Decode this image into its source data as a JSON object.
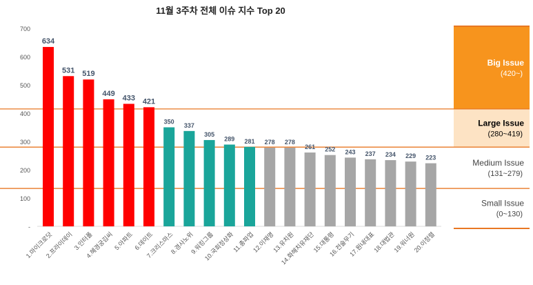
{
  "chart_data": {
    "type": "bar",
    "title": "11월 3주차 전체 이슈 지수 Top 20",
    "xlabel": "",
    "ylabel": "",
    "ylim": [
      0,
      700
    ],
    "yticks": [
      "-",
      "100",
      "200",
      "300",
      "400",
      "500",
      "600",
      "700"
    ],
    "grid": false,
    "categories": [
      "1.마이크로닷",
      "2.프라이데이",
      "3.인터폴",
      "4.혜경궁김씨",
      "5.아파트",
      "6.데이트",
      "7.크리스마스",
      "8.경사노위",
      "9.워킹그룹",
      "10.국회정상화",
      "11.총파업",
      "12.이재명",
      "13.유치원",
      "14.화해치유재단",
      "15.대통령",
      "16.전술무기",
      "17.원내대표",
      "18.대법관",
      "19.워너원",
      "20.이정렬"
    ],
    "values": [
      634,
      531,
      519,
      449,
      433,
      421,
      350,
      337,
      305,
      289,
      281,
      278,
      278,
      261,
      252,
      243,
      237,
      234,
      229,
      223
    ],
    "thresholds": [
      415,
      280,
      134
    ],
    "bands": [
      {
        "name": "Big Issue",
        "range": "(420~)",
        "color": "#f7941d",
        "text_color": "#ffffff"
      },
      {
        "name": "Large Issue",
        "range": "(280~419)",
        "color": "#fde3c4",
        "text_color": "#000000"
      },
      {
        "name": "Medium Issue",
        "range": "(131~279)",
        "color": "#ffffff",
        "text_color": "#444444"
      },
      {
        "name": "Small Issue",
        "range": "(0~130)",
        "color": "#ffffff",
        "text_color": "#444444"
      }
    ],
    "colors": {
      "big": "#ff0000",
      "large": "#1aa59a",
      "other": "#a6a6a6",
      "line": "#e87722"
    }
  }
}
